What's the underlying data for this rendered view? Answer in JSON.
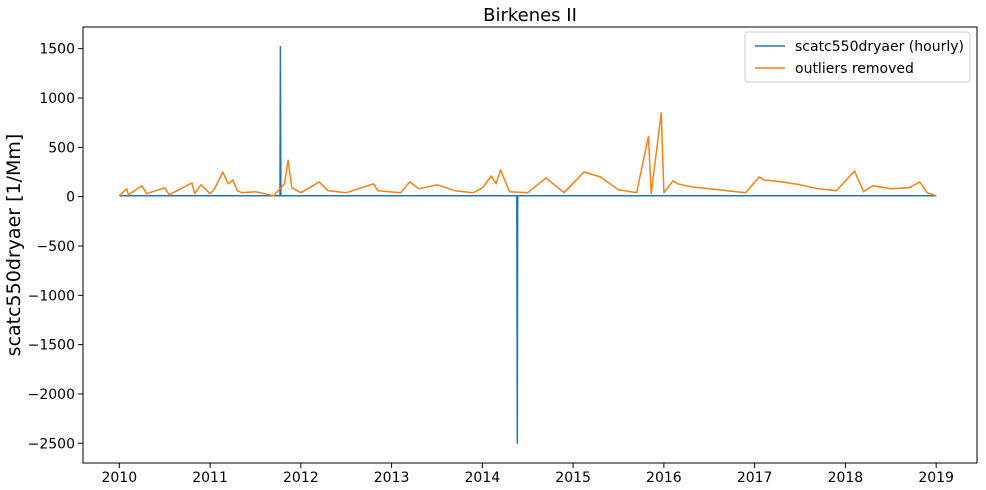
{
  "chart_data": {
    "type": "line",
    "title": "Birkenes II",
    "xlabel": "",
    "ylabel": "scatc550dryaer [1/Mm]",
    "xlim": [
      2009.6,
      2019.45
    ],
    "ylim": [
      -2700,
      1720
    ],
    "x_ticks": [
      2010,
      2011,
      2012,
      2013,
      2014,
      2015,
      2016,
      2017,
      2018,
      2019
    ],
    "x_tick_labels": [
      "2010",
      "2011",
      "2012",
      "2013",
      "2014",
      "2015",
      "2016",
      "2017",
      "2018",
      "2019"
    ],
    "y_ticks": [
      1500,
      1000,
      500,
      0,
      -500,
      -1000,
      -1500,
      -2000,
      -2500
    ],
    "y_tick_labels": [
      "1500",
      "1000",
      "500",
      "0",
      "−500",
      "−1000",
      "−1500",
      "−2000",
      "−2500"
    ],
    "grid": false,
    "legend": "top-right",
    "series": [
      {
        "name": "scatc550dryaer (hourly)",
        "color": "#1f77b4",
        "x": [
          2010.0,
          2011.77,
          2011.775,
          2011.78,
          2014.38,
          2014.385,
          2014.39,
          2019.0
        ],
        "y": [
          10,
          10,
          1520,
          10,
          10,
          -2500,
          10,
          10
        ]
      },
      {
        "name": "outliers removed",
        "color": "#ff7f0e",
        "x": [
          2010.0,
          2010.08,
          2010.1,
          2010.25,
          2010.3,
          2010.5,
          2010.55,
          2010.8,
          2010.83,
          2010.9,
          2011.0,
          2011.05,
          2011.14,
          2011.2,
          2011.25,
          2011.3,
          2011.35,
          2011.5,
          2011.6,
          2011.7,
          2011.82,
          2011.86,
          2011.9,
          2012.0,
          2012.15,
          2012.2,
          2012.3,
          2012.5,
          2012.8,
          2012.85,
          2013.1,
          2013.2,
          2013.3,
          2013.5,
          2013.7,
          2013.9,
          2014.0,
          2014.1,
          2014.15,
          2014.2,
          2014.3,
          2014.5,
          2014.7,
          2014.9,
          2015.12,
          2015.3,
          2015.5,
          2015.7,
          2015.83,
          2015.86,
          2015.97,
          2016.0,
          2016.1,
          2016.15,
          2016.3,
          2016.5,
          2016.7,
          2016.9,
          2017.05,
          2017.1,
          2017.3,
          2017.5,
          2017.7,
          2017.9,
          2018.1,
          2018.2,
          2018.3,
          2018.5,
          2018.7,
          2018.82,
          2018.9,
          2019.0
        ],
        "y": [
          10,
          80,
          20,
          110,
          30,
          90,
          20,
          140,
          30,
          120,
          30,
          80,
          250,
          130,
          170,
          60,
          40,
          50,
          30,
          10,
          130,
          370,
          90,
          40,
          120,
          150,
          60,
          40,
          130,
          60,
          40,
          150,
          80,
          120,
          60,
          40,
          90,
          210,
          130,
          270,
          50,
          40,
          190,
          40,
          250,
          200,
          70,
          40,
          610,
          30,
          850,
          40,
          160,
          130,
          100,
          80,
          60,
          40,
          200,
          170,
          150,
          120,
          80,
          60,
          260,
          50,
          110,
          80,
          90,
          150,
          40,
          10
        ]
      }
    ]
  }
}
